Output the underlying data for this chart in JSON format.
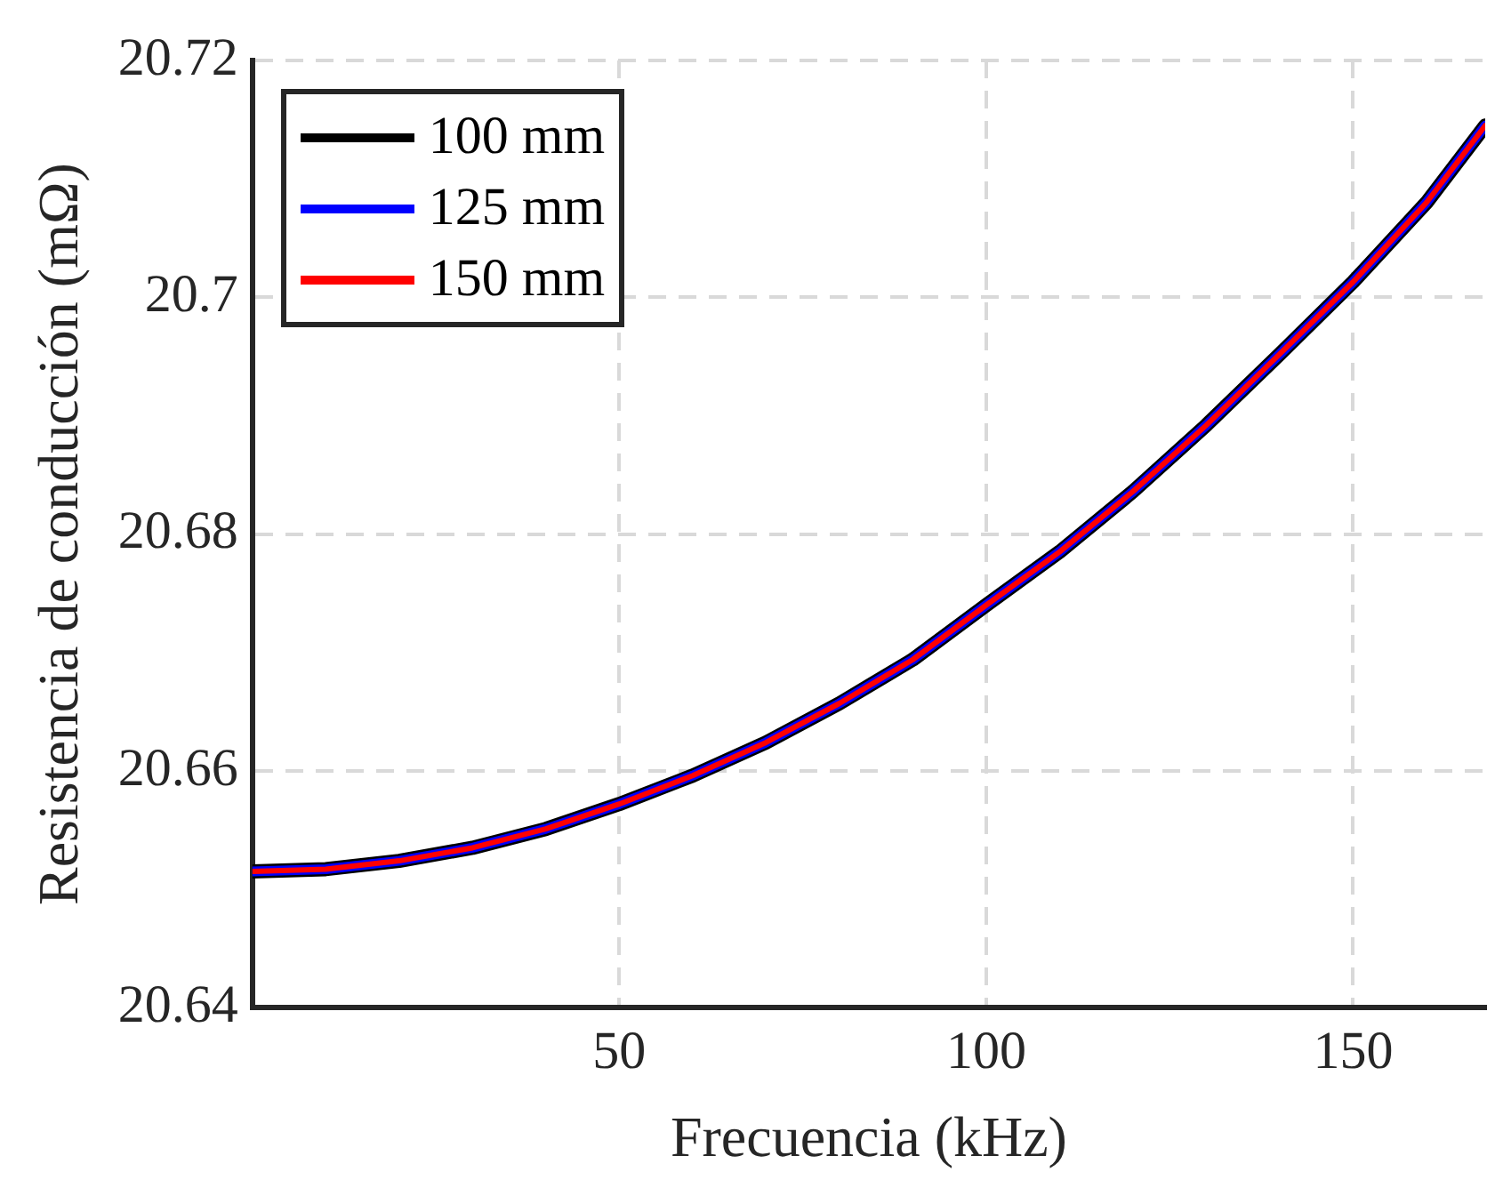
{
  "chart_data": {
    "type": "line",
    "xlabel": "Frecuencia (kHz)",
    "ylabel": "Resistencia de conducción (mΩ)",
    "x": [
      0,
      10,
      20,
      30,
      40,
      50,
      60,
      70,
      80,
      90,
      100,
      110,
      120,
      130,
      140,
      150,
      160,
      168
    ],
    "series": [
      {
        "name": "100 mm",
        "color": "#000000",
        "values": [
          20.6515,
          20.6517,
          20.6524,
          20.6535,
          20.6551,
          20.6572,
          20.6596,
          20.6624,
          20.6657,
          20.6694,
          20.674,
          20.6785,
          20.6836,
          20.6892,
          20.6952,
          20.7013,
          20.708,
          20.7145
        ]
      },
      {
        "name": "125 mm",
        "color": "#0000ff",
        "values": [
          20.6515,
          20.6517,
          20.6524,
          20.6535,
          20.6551,
          20.6572,
          20.6596,
          20.6624,
          20.6657,
          20.6694,
          20.674,
          20.6785,
          20.6836,
          20.6892,
          20.6952,
          20.7013,
          20.708,
          20.7145
        ]
      },
      {
        "name": "150 mm",
        "color": "#ff0000",
        "values": [
          20.6515,
          20.6517,
          20.6524,
          20.6535,
          20.6551,
          20.6572,
          20.6596,
          20.6624,
          20.6657,
          20.6694,
          20.674,
          20.6785,
          20.6836,
          20.6892,
          20.6952,
          20.7013,
          20.708,
          20.7145
        ]
      }
    ],
    "xlim": [
      0,
      168
    ],
    "xticks": [
      50,
      100,
      150
    ],
    "ylim": [
      20.64,
      20.72
    ],
    "yticks": [
      20.64,
      20.66,
      20.68,
      20.7,
      20.72
    ],
    "grid": true,
    "legend": "top left",
    "marker": "none",
    "line_style": "solid"
  }
}
